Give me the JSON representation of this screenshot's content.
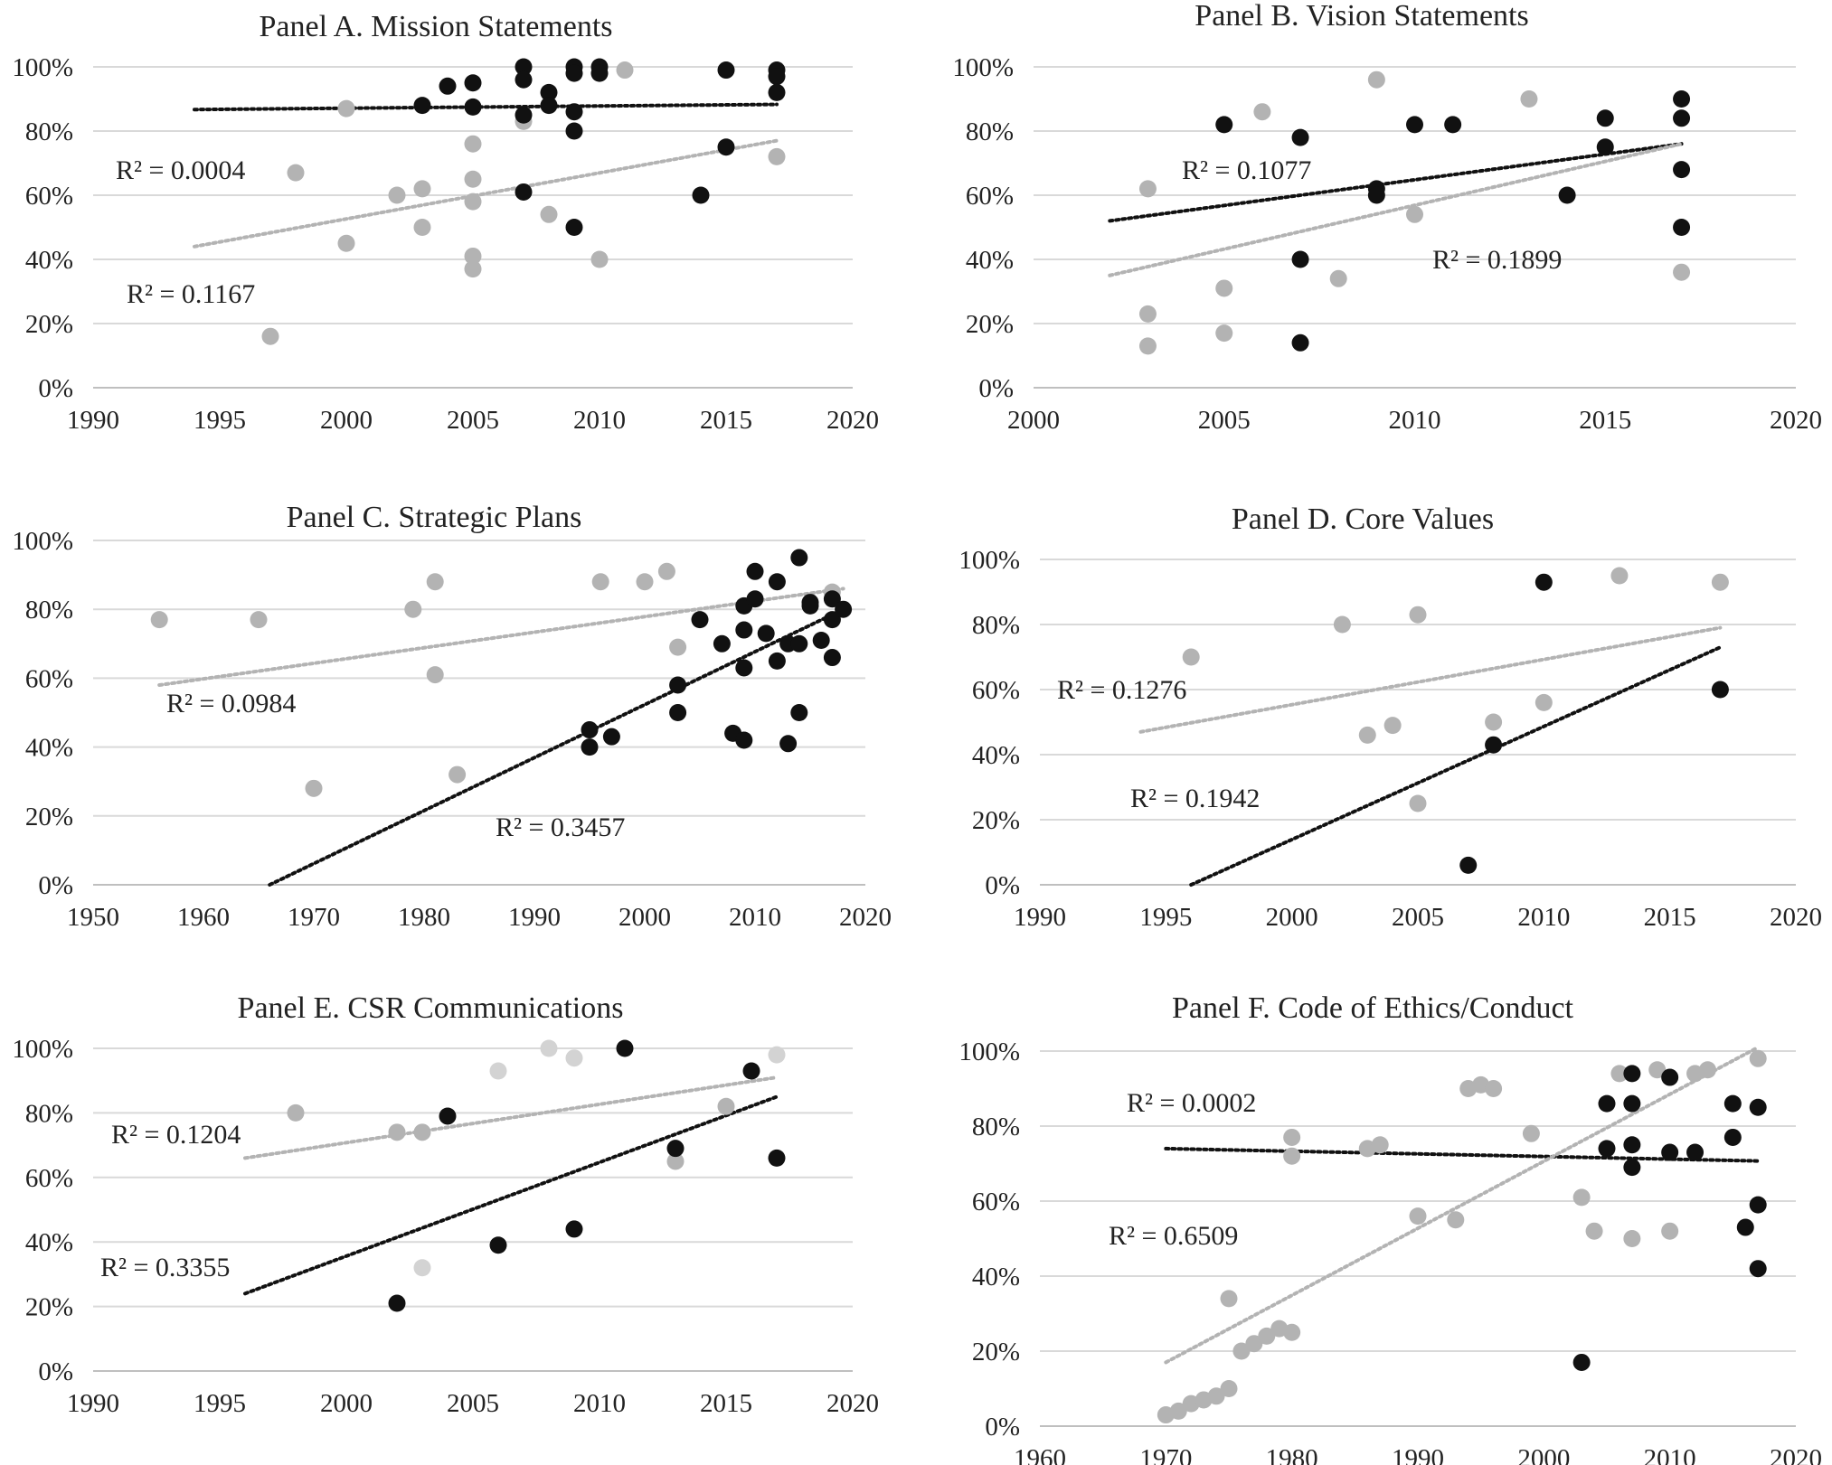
{
  "colors": {
    "grid": "#d9d9d9",
    "axis": "#bfbfbf",
    "black": "#111111",
    "gray": "#b3b3b3",
    "lightgray": "#d3d3d3",
    "text": "#222222"
  },
  "chart_data": [
    {
      "type": "scatter",
      "title": "Panel A. Mission Statements",
      "xlim": [
        1990,
        2020
      ],
      "xticks": [
        1990,
        1995,
        2000,
        2005,
        2010,
        2015,
        2020
      ],
      "ylim": [
        0,
        100
      ],
      "yticks": [
        0,
        20,
        40,
        60,
        80,
        100
      ],
      "ytick_labels": [
        "0%",
        "20%",
        "40%",
        "60%",
        "80%",
        "100%"
      ],
      "grid": true,
      "series": [
        {
          "name": "black",
          "color": "#111111",
          "points": [
            [
              2003,
              88
            ],
            [
              2004,
              94
            ],
            [
              2005,
              95
            ],
            [
              2005,
              87.5
            ],
            [
              2007,
              100
            ],
            [
              2007,
              96
            ],
            [
              2007,
              85
            ],
            [
              2007,
              61
            ],
            [
              2008,
              92
            ],
            [
              2008,
              88
            ],
            [
              2009,
              100
            ],
            [
              2009,
              98
            ],
            [
              2009,
              86
            ],
            [
              2009,
              80
            ],
            [
              2009,
              50
            ],
            [
              2010,
              100
            ],
            [
              2010,
              98
            ],
            [
              2014,
              60
            ],
            [
              2015,
              99
            ],
            [
              2015,
              75
            ],
            [
              2017,
              99
            ],
            [
              2017,
              97
            ],
            [
              2017,
              92
            ]
          ],
          "trend": {
            "x": [
              1994,
              2017
            ],
            "y": [
              86.7,
              88.3
            ]
          }
        },
        {
          "name": "gray",
          "color": "#b3b3b3",
          "points": [
            [
              1997,
              16
            ],
            [
              1998,
              67
            ],
            [
              2000,
              87
            ],
            [
              2000,
              45
            ],
            [
              2002,
              60
            ],
            [
              2003,
              62
            ],
            [
              2003,
              50
            ],
            [
              2005,
              76
            ],
            [
              2005,
              65
            ],
            [
              2005,
              58
            ],
            [
              2005,
              41
            ],
            [
              2005,
              37
            ],
            [
              2007,
              83
            ],
            [
              2008,
              54
            ],
            [
              2010,
              40
            ],
            [
              2011,
              99
            ],
            [
              2017,
              72
            ]
          ],
          "trend": {
            "x": [
              1994,
              2017
            ],
            "y": [
              44,
              77
            ]
          }
        }
      ],
      "annotations": [
        "R² = 0.0004",
        "R² = 0.1167"
      ]
    },
    {
      "type": "scatter",
      "title": "Panel B. Vision Statements",
      "xlim": [
        2000,
        2020
      ],
      "xticks": [
        2000,
        2005,
        2010,
        2015,
        2020
      ],
      "ylim": [
        0,
        100
      ],
      "yticks": [
        0,
        20,
        40,
        60,
        80,
        100
      ],
      "ytick_labels": [
        "0%",
        "20%",
        "40%",
        "60%",
        "80%",
        "100%"
      ],
      "grid": true,
      "series": [
        {
          "name": "black",
          "color": "#111111",
          "points": [
            [
              2005,
              82
            ],
            [
              2007,
              78
            ],
            [
              2007,
              40
            ],
            [
              2007,
              14
            ],
            [
              2009,
              62
            ],
            [
              2009,
              60
            ],
            [
              2010,
              82
            ],
            [
              2011,
              82
            ],
            [
              2014,
              60
            ],
            [
              2015,
              84
            ],
            [
              2015,
              75
            ],
            [
              2017,
              90
            ],
            [
              2017,
              84
            ],
            [
              2017,
              68
            ],
            [
              2017,
              50
            ]
          ],
          "trend": {
            "x": [
              2002,
              2017
            ],
            "y": [
              52,
              76
            ]
          }
        },
        {
          "name": "gray",
          "color": "#b3b3b3",
          "points": [
            [
              2003,
              62
            ],
            [
              2003,
              23
            ],
            [
              2003,
              13
            ],
            [
              2005,
              31
            ],
            [
              2005,
              17
            ],
            [
              2006,
              86
            ],
            [
              2008,
              34
            ],
            [
              2009,
              96
            ],
            [
              2010,
              54
            ],
            [
              2013,
              90
            ],
            [
              2017,
              36
            ]
          ],
          "trend": {
            "x": [
              2002,
              2017
            ],
            "y": [
              35,
              76
            ]
          }
        }
      ],
      "annotations": [
        "R² = 0.1077",
        "R² = 0.1899"
      ]
    },
    {
      "type": "scatter",
      "title": "Panel C. Strategic Plans",
      "xlim": [
        1950,
        2020
      ],
      "xticks": [
        1950,
        1960,
        1970,
        1980,
        1990,
        2000,
        2010,
        2020
      ],
      "ylim": [
        0,
        100
      ],
      "yticks": [
        0,
        20,
        40,
        60,
        80,
        100
      ],
      "ytick_labels": [
        "0%",
        "20%",
        "40%",
        "60%",
        "80%",
        "100%"
      ],
      "grid": true,
      "series": [
        {
          "name": "black",
          "color": "#111111",
          "points": [
            [
              1995,
              45
            ],
            [
              1995,
              40
            ],
            [
              1997,
              43
            ],
            [
              2003,
              58
            ],
            [
              2003,
              50
            ],
            [
              2005,
              77
            ],
            [
              2007,
              70
            ],
            [
              2008,
              44
            ],
            [
              2009,
              81
            ],
            [
              2009,
              74
            ],
            [
              2009,
              63
            ],
            [
              2009,
              42
            ],
            [
              2010,
              91
            ],
            [
              2010,
              83
            ],
            [
              2011,
              73
            ],
            [
              2012,
              88
            ],
            [
              2012,
              65
            ],
            [
              2013,
              70
            ],
            [
              2013,
              41
            ],
            [
              2014,
              95
            ],
            [
              2014,
              70
            ],
            [
              2014,
              50
            ],
            [
              2015,
              82
            ],
            [
              2015,
              81
            ],
            [
              2016,
              71
            ],
            [
              2017,
              83
            ],
            [
              2017,
              77
            ],
            [
              2017,
              66
            ],
            [
              2018,
              80
            ]
          ],
          "trend": {
            "x": [
              1966,
              2018
            ],
            "y": [
              0,
              80
            ]
          }
        },
        {
          "name": "gray",
          "color": "#b3b3b3",
          "points": [
            [
              1956,
              77
            ],
            [
              1965,
              77
            ],
            [
              1970,
              28
            ],
            [
              1979,
              80
            ],
            [
              1981,
              88
            ],
            [
              1981,
              61
            ],
            [
              1983,
              32
            ],
            [
              1996,
              88
            ],
            [
              2000,
              88
            ],
            [
              2002,
              91
            ],
            [
              2003,
              69
            ],
            [
              2017,
              85
            ]
          ],
          "trend": {
            "x": [
              1956,
              2018
            ],
            "y": [
              58,
              86
            ]
          }
        }
      ],
      "annotations": [
        "R² = 0.0984",
        "R² = 0.3457"
      ]
    },
    {
      "type": "scatter",
      "title": "Panel D. Core Values",
      "xlim": [
        1990,
        2020
      ],
      "xticks": [
        1990,
        1995,
        2000,
        2005,
        2010,
        2015,
        2020
      ],
      "ylim": [
        0,
        100
      ],
      "yticks": [
        0,
        20,
        40,
        60,
        80,
        100
      ],
      "ytick_labels": [
        "0%",
        "20%",
        "40%",
        "60%",
        "80%",
        "100%"
      ],
      "grid": true,
      "series": [
        {
          "name": "black",
          "color": "#111111",
          "points": [
            [
              2007,
              6
            ],
            [
              2008,
              43
            ],
            [
              2010,
              93
            ],
            [
              2017,
              60
            ]
          ],
          "trend": {
            "x": [
              1996,
              2017
            ],
            "y": [
              0,
              73
            ]
          }
        },
        {
          "name": "gray",
          "color": "#b3b3b3",
          "points": [
            [
              1996,
              70
            ],
            [
              2002,
              80
            ],
            [
              2003,
              46
            ],
            [
              2004,
              49
            ],
            [
              2005,
              83
            ],
            [
              2005,
              25
            ],
            [
              2008,
              50
            ],
            [
              2010,
              56
            ],
            [
              2013,
              95
            ],
            [
              2017,
              93
            ]
          ],
          "trend": {
            "x": [
              1994,
              2017
            ],
            "y": [
              47,
              79
            ]
          }
        }
      ],
      "annotations": [
        "R² = 0.1276",
        "R² = 0.1942"
      ]
    },
    {
      "type": "scatter",
      "title": "Panel E. CSR Communications",
      "xlim": [
        1990,
        2020
      ],
      "xticks": [
        1990,
        1995,
        2000,
        2005,
        2010,
        2015,
        2020
      ],
      "ylim": [
        0,
        100
      ],
      "yticks": [
        0,
        20,
        40,
        60,
        80,
        100
      ],
      "ytick_labels": [
        "0%",
        "20%",
        "40%",
        "60%",
        "80%",
        "100%"
      ],
      "grid": true,
      "series": [
        {
          "name": "black",
          "color": "#111111",
          "points": [
            [
              2002,
              21
            ],
            [
              2004,
              79
            ],
            [
              2006,
              39
            ],
            [
              2009,
              44
            ],
            [
              2011,
              100
            ],
            [
              2013,
              69
            ],
            [
              2016,
              93
            ],
            [
              2017,
              66
            ]
          ],
          "trend": {
            "x": [
              1996,
              2017
            ],
            "y": [
              24,
              85
            ]
          }
        },
        {
          "name": "gray",
          "color": "#b3b3b3",
          "points": [
            [
              1998,
              80
            ],
            [
              2002,
              74
            ],
            [
              2003,
              74
            ],
            [
              2013,
              65
            ],
            [
              2015,
              82
            ]
          ],
          "trend": {
            "x": [
              1996,
              2017
            ],
            "y": [
              66,
              91
            ]
          }
        },
        {
          "name": "lightgray",
          "color": "#d3d3d3",
          "points": [
            [
              2003,
              32
            ],
            [
              2006,
              93
            ],
            [
              2008,
              100
            ],
            [
              2009,
              97
            ],
            [
              2017,
              98
            ]
          ]
        }
      ],
      "annotations": [
        "R² = 0.1204",
        "R² = 0.3355"
      ]
    },
    {
      "type": "scatter",
      "title": "Panel F. Code of Ethics/Conduct",
      "xlim": [
        1960,
        2020
      ],
      "xticks": [
        1960,
        1970,
        1980,
        1990,
        2000,
        2010,
        2020
      ],
      "ylim": [
        0,
        100
      ],
      "yticks": [
        0,
        20,
        40,
        60,
        80,
        100
      ],
      "ytick_labels": [
        "0%",
        "20%",
        "40%",
        "60%",
        "80%",
        "100%"
      ],
      "grid": true,
      "series": [
        {
          "name": "black",
          "color": "#111111",
          "points": [
            [
              2003,
              17
            ],
            [
              2005,
              86
            ],
            [
              2005,
              74
            ],
            [
              2007,
              94
            ],
            [
              2007,
              86
            ],
            [
              2007,
              75
            ],
            [
              2007,
              69
            ],
            [
              2010,
              93
            ],
            [
              2010,
              73
            ],
            [
              2012,
              73
            ],
            [
              2015,
              86
            ],
            [
              2015,
              77
            ],
            [
              2016,
              53
            ],
            [
              2017,
              85
            ],
            [
              2017,
              59
            ],
            [
              2017,
              42
            ]
          ],
          "trend": {
            "x": [
              1970,
              2017
            ],
            "y": [
              74,
              70.7
            ]
          }
        },
        {
          "name": "gray",
          "color": "#b3b3b3",
          "points": [
            [
              1970,
              3
            ],
            [
              1971,
              4
            ],
            [
              1972,
              6
            ],
            [
              1973,
              7
            ],
            [
              1974,
              8
            ],
            [
              1975,
              10
            ],
            [
              1975,
              34
            ],
            [
              1976,
              20
            ],
            [
              1977,
              22
            ],
            [
              1978,
              24
            ],
            [
              1979,
              26
            ],
            [
              1980,
              25
            ],
            [
              1980,
              77
            ],
            [
              1980,
              72
            ],
            [
              1986,
              74
            ],
            [
              1987,
              75
            ],
            [
              1990,
              56
            ],
            [
              1993,
              55
            ],
            [
              1994,
              90
            ],
            [
              1995,
              91
            ],
            [
              1996,
              90
            ],
            [
              1999,
              78
            ],
            [
              2003,
              61
            ],
            [
              2004,
              52
            ],
            [
              2006,
              94
            ],
            [
              2007,
              50
            ],
            [
              2009,
              95
            ],
            [
              2010,
              52
            ],
            [
              2012,
              94
            ],
            [
              2013,
              95
            ],
            [
              2017,
              98
            ]
          ],
          "trend": {
            "x": [
              1970,
              2017
            ],
            "y": [
              17,
              101
            ]
          }
        }
      ],
      "annotations": [
        "R² = 0.0002",
        "R² = 0.6509"
      ]
    }
  ]
}
